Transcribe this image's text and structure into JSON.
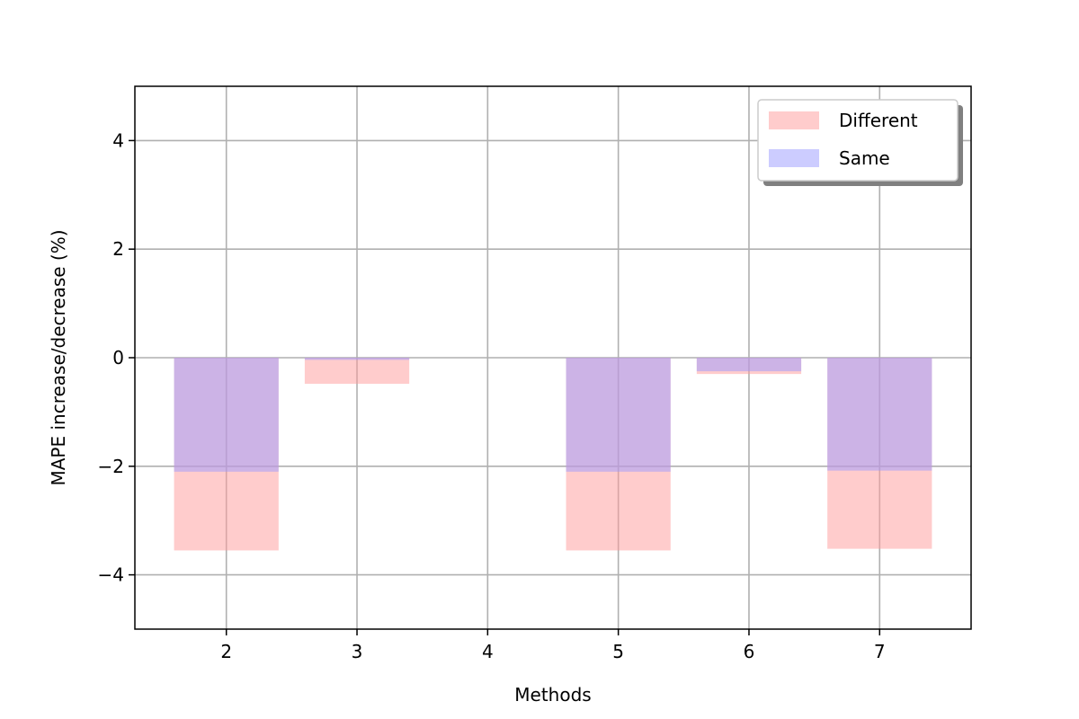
{
  "chart_data": {
    "type": "bar",
    "xlabel": "Methods",
    "ylabel": "MAPE increase/decrease (%)",
    "x": [
      2,
      3,
      4,
      5,
      6,
      7
    ],
    "xlim": [
      1.3,
      7.7
    ],
    "ylim": [
      -5,
      5
    ],
    "yticks": [
      -4,
      -2,
      0,
      2,
      4
    ],
    "ytick_labels": [
      "−4",
      "−2",
      "0",
      "2",
      "4"
    ],
    "xtick_labels": [
      "2",
      "3",
      "4",
      "5",
      "6",
      "7"
    ],
    "grid": true,
    "legend_position": "top-right",
    "series": [
      {
        "name": "Different",
        "color": "#ff9999",
        "opacity": 0.5,
        "values": [
          -3.55,
          -0.48,
          0,
          -3.55,
          -0.3,
          -3.52
        ]
      },
      {
        "name": "Same",
        "color": "#9999ff",
        "opacity": 0.5,
        "values": [
          -2.1,
          -0.04,
          0,
          -2.1,
          -0.25,
          -2.08
        ]
      }
    ]
  }
}
